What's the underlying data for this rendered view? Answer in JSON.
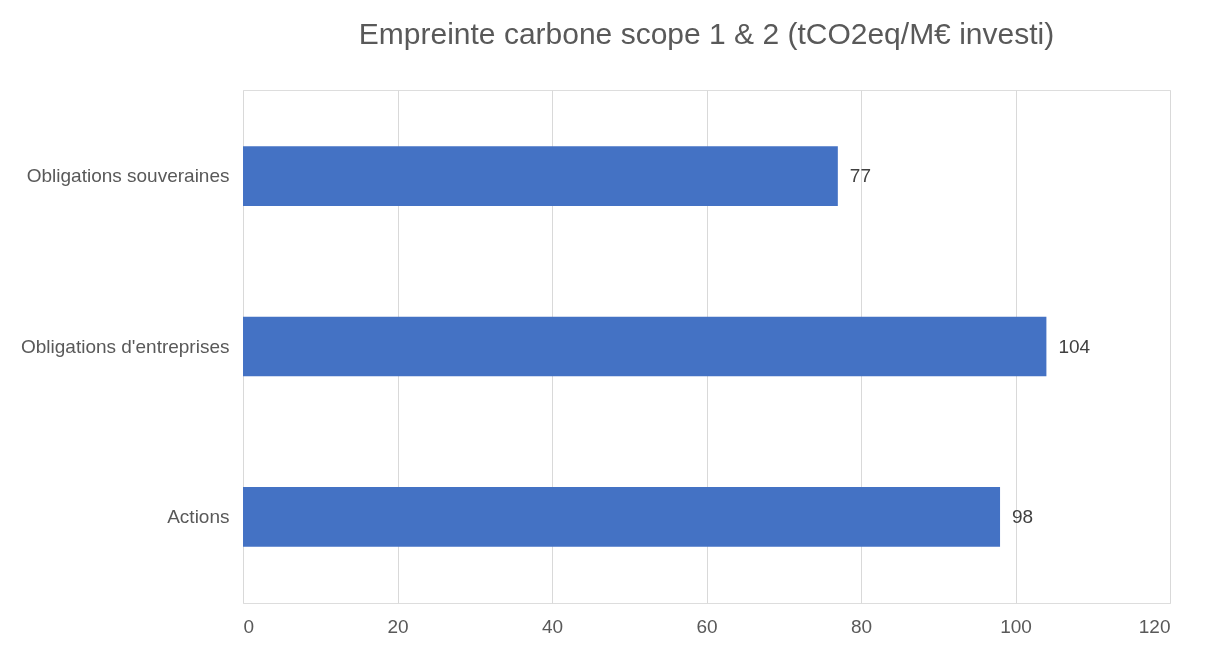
{
  "chart_data": {
    "type": "bar",
    "orientation": "horizontal",
    "title": "Empreinte carbone scope 1 & 2 (tCO2eq/M€ investi)",
    "categories": [
      "Obligations souveraines",
      "Obligations d'entreprises",
      "Actions"
    ],
    "values": [
      77,
      104,
      98
    ],
    "color": "#4472c4",
    "data_labels": true,
    "xlim": [
      0,
      120
    ],
    "xticks": [
      0,
      20,
      40,
      60,
      80,
      100,
      120
    ],
    "grid": "x"
  }
}
